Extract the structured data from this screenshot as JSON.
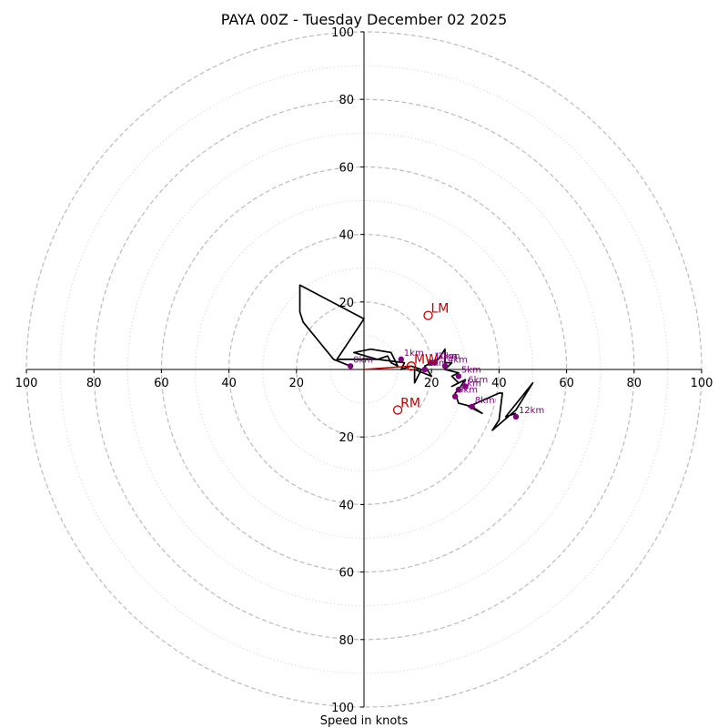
{
  "chart_data": {
    "type": "hodograph",
    "title": "PAYA 00Z - Tuesday December 02 2025",
    "xlabel": "Speed in knots",
    "xlim": [
      -100,
      100
    ],
    "ylim": [
      -100,
      100
    ],
    "ring_major": [
      20,
      40,
      60,
      80,
      100
    ],
    "ring_minor": [
      10,
      30,
      50,
      70,
      90
    ],
    "x_ticks": [
      "100",
      "80",
      "60",
      "40",
      "20",
      "20",
      "40",
      "60",
      "80",
      "100"
    ],
    "x_tick_values": [
      -100,
      -80,
      -60,
      -40,
      -20,
      20,
      40,
      60,
      80,
      100
    ],
    "y_ticks": [
      "100",
      "80",
      "60",
      "40",
      "20",
      "20",
      "40",
      "60",
      "80",
      "100"
    ],
    "y_tick_values": [
      100,
      80,
      60,
      40,
      20,
      -20,
      -40,
      -60,
      -80,
      -100
    ],
    "trace": [
      [
        -4,
        1
      ],
      [
        -9,
        3
      ],
      [
        -18,
        14
      ],
      [
        -19,
        17
      ],
      [
        -19,
        21
      ],
      [
        -19,
        25
      ],
      [
        0,
        15
      ],
      [
        -2,
        12
      ],
      [
        -8,
        3
      ],
      [
        4,
        3
      ],
      [
        7,
        4
      ],
      [
        8,
        2
      ],
      [
        10,
        1
      ],
      [
        8,
        5
      ],
      [
        2,
        6
      ],
      [
        -3,
        5
      ],
      [
        4,
        3
      ],
      [
        12,
        2
      ],
      [
        11,
        0
      ],
      [
        14,
        1
      ],
      [
        17,
        0
      ],
      [
        15,
        -4
      ],
      [
        15,
        0
      ],
      [
        20,
        -2
      ],
      [
        18,
        1
      ],
      [
        22,
        3
      ],
      [
        24,
        6
      ],
      [
        24,
        2
      ],
      [
        26,
        2
      ],
      [
        24,
        0
      ],
      [
        28,
        -1
      ],
      [
        26,
        -2
      ],
      [
        28,
        -4
      ],
      [
        26,
        -5
      ],
      [
        30,
        -3
      ],
      [
        28,
        -6
      ],
      [
        27,
        -7
      ],
      [
        28,
        -10
      ],
      [
        32,
        -11
      ],
      [
        35,
        -13
      ],
      [
        31,
        -11
      ],
      [
        40,
        -7
      ],
      [
        41,
        -7
      ],
      [
        40,
        -15
      ],
      [
        38,
        -18
      ],
      [
        45,
        -12
      ],
      [
        50,
        -4
      ],
      [
        42,
        -14
      ],
      [
        45,
        -13
      ]
    ],
    "height_markers": [
      {
        "label": "1km",
        "u": 11,
        "v": 3
      },
      {
        "label": "2km",
        "u": 18,
        "v": 0
      },
      {
        "label": "3km",
        "u": 21,
        "v": 2
      },
      {
        "label": "4km",
        "u": 24,
        "v": 1
      },
      {
        "label": "5km",
        "u": 28,
        "v": -2
      },
      {
        "label": "6km",
        "u": 30,
        "v": -5
      },
      {
        "label": "7km",
        "u": 28,
        "v": -6
      },
      {
        "label": "8km",
        "u": 32,
        "v": -11
      },
      {
        "label": "9km",
        "u": 27,
        "v": -8
      },
      {
        "label": "10km",
        "u": 20,
        "v": 2
      },
      {
        "label": "12km",
        "u": 45,
        "v": -14
      },
      {
        "label": "0km",
        "u": -4,
        "v": 1
      }
    ],
    "storm_markers": [
      {
        "label": "LM",
        "u": 19,
        "v": 16
      },
      {
        "label": "RM",
        "u": 10,
        "v": -12
      },
      {
        "label": "MW",
        "u": 14,
        "v": 1
      }
    ],
    "mean_wind_vector": {
      "u": 14,
      "v": 1
    },
    "colors": {
      "trace": "#000000",
      "height_marker": "#800080",
      "storm_marker": "#c00000",
      "ring": "#bbbbbb"
    }
  }
}
